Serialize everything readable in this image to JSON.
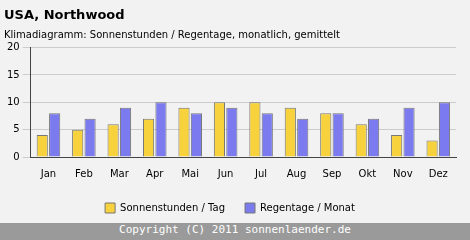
{
  "chart_data": {
    "type": "bar",
    "title": "USA, Northwood",
    "subtitle": "Klimadiagramm: Sonnenstunden / Regentage, monatlich, gemittelt",
    "footer": "Copyright (C) 2011 sonnenlaender.de",
    "categories": [
      "Jan",
      "Feb",
      "Mar",
      "Apr",
      "Mai",
      "Jun",
      "Jul",
      "Aug",
      "Sep",
      "Okt",
      "Nov",
      "Dez"
    ],
    "series": [
      {
        "name": "Sonnenstunden / Tag",
        "color": "#f7d23c",
        "values": [
          4,
          5,
          6,
          7,
          9,
          10,
          10,
          9,
          8,
          6,
          4,
          3
        ]
      },
      {
        "name": "Regentage / Monat",
        "color": "#7b7bef",
        "values": [
          8,
          7,
          9,
          10,
          8,
          9,
          8,
          7,
          8,
          7,
          9,
          10
        ]
      }
    ],
    "ylim": [
      0,
      20
    ],
    "yticks": [
      0,
      5,
      10,
      15,
      20
    ],
    "grid": true,
    "legend": "bottom"
  }
}
